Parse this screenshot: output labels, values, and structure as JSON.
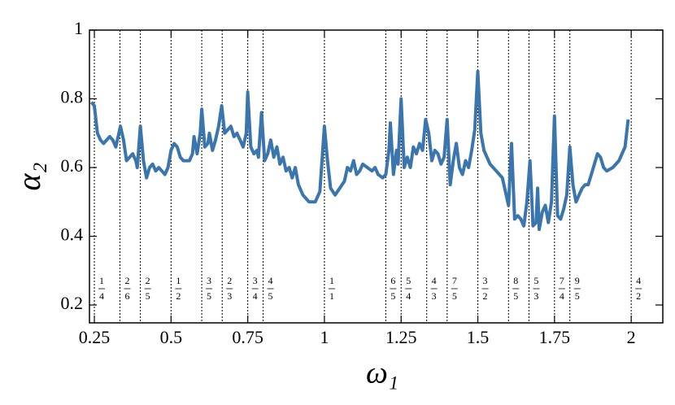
{
  "chart_data": {
    "type": "line",
    "x_label": "ω₁",
    "y_label": "α₂",
    "color": "#3a76ad",
    "xlim": [
      0.234,
      2.103
    ],
    "ylim": [
      0.148,
      1
    ],
    "xticks": [
      0.25,
      0.5,
      0.75,
      1,
      1.25,
      1.5,
      1.75,
      2
    ],
    "yticks": [
      0.2,
      0.4,
      0.6,
      0.8,
      1
    ],
    "resonances": [
      {
        "value": 0.25,
        "numerator": 1,
        "denominator": 4
      },
      {
        "value": 0.3333,
        "numerator": 2,
        "denominator": 6
      },
      {
        "value": 0.4,
        "numerator": 2,
        "denominator": 5
      },
      {
        "value": 0.5,
        "numerator": 1,
        "denominator": 2
      },
      {
        "value": 0.6,
        "numerator": 3,
        "denominator": 5
      },
      {
        "value": 0.6667,
        "numerator": 2,
        "denominator": 3
      },
      {
        "value": 0.75,
        "numerator": 3,
        "denominator": 4
      },
      {
        "value": 0.8,
        "numerator": 4,
        "denominator": 5
      },
      {
        "value": 1,
        "numerator": 1,
        "denominator": 1
      },
      {
        "value": 1.2,
        "numerator": 6,
        "denominator": 5
      },
      {
        "value": 1.25,
        "numerator": 5,
        "denominator": 4
      },
      {
        "value": 1.3333,
        "numerator": 4,
        "denominator": 3
      },
      {
        "value": 1.4,
        "numerator": 7,
        "denominator": 5
      },
      {
        "value": 1.5,
        "numerator": 3,
        "denominator": 2
      },
      {
        "value": 1.6,
        "numerator": 8,
        "denominator": 5
      },
      {
        "value": 1.6667,
        "numerator": 5,
        "denominator": 3
      },
      {
        "value": 1.75,
        "numerator": 7,
        "denominator": 4
      },
      {
        "value": 1.8,
        "numerator": 9,
        "denominator": 5
      },
      {
        "value": 2,
        "numerator": 4,
        "denominator": 2
      }
    ],
    "x": [
      0.24,
      0.25,
      0.26,
      0.27,
      0.28,
      0.29,
      0.3,
      0.31,
      0.32,
      0.33,
      0.335,
      0.345,
      0.355,
      0.365,
      0.375,
      0.385,
      0.39,
      0.4,
      0.41,
      0.42,
      0.43,
      0.44,
      0.45,
      0.46,
      0.47,
      0.48,
      0.49,
      0.5,
      0.51,
      0.52,
      0.53,
      0.54,
      0.55,
      0.56,
      0.57,
      0.575,
      0.585,
      0.595,
      0.6,
      0.61,
      0.62,
      0.625,
      0.635,
      0.645,
      0.655,
      0.665,
      0.675,
      0.685,
      0.695,
      0.705,
      0.715,
      0.725,
      0.735,
      0.745,
      0.75,
      0.76,
      0.77,
      0.78,
      0.785,
      0.795,
      0.805,
      0.815,
      0.825,
      0.835,
      0.845,
      0.855,
      0.865,
      0.875,
      0.885,
      0.895,
      0.905,
      0.915,
      0.93,
      0.95,
      0.97,
      0.985,
      1.0,
      1.01,
      1.02,
      1.035,
      1.05,
      1.065,
      1.075,
      1.085,
      1.095,
      1.105,
      1.115,
      1.125,
      1.14,
      1.155,
      1.165,
      1.175,
      1.19,
      1.2,
      1.21,
      1.215,
      1.225,
      1.235,
      1.24,
      1.25,
      1.26,
      1.27,
      1.28,
      1.29,
      1.3,
      1.31,
      1.32,
      1.33,
      1.34,
      1.35,
      1.36,
      1.37,
      1.38,
      1.39,
      1.4,
      1.41,
      1.42,
      1.43,
      1.44,
      1.45,
      1.46,
      1.47,
      1.48,
      1.49,
      1.5,
      1.51,
      1.52,
      1.54,
      1.56,
      1.58,
      1.59,
      1.6,
      1.61,
      1.62,
      1.63,
      1.64,
      1.65,
      1.66,
      1.67,
      1.68,
      1.69,
      1.695,
      1.7,
      1.71,
      1.72,
      1.73,
      1.74,
      1.75,
      1.76,
      1.77,
      1.78,
      1.79,
      1.8,
      1.81,
      1.82,
      1.83,
      1.84,
      1.85,
      1.86,
      1.87,
      1.89,
      1.9,
      1.91,
      1.92,
      1.94,
      1.96,
      1.98,
      1.99
    ],
    "values": [
      0.79,
      0.78,
      0.7,
      0.68,
      0.67,
      0.68,
      0.69,
      0.68,
      0.66,
      0.7,
      0.72,
      0.68,
      0.62,
      0.63,
      0.64,
      0.62,
      0.6,
      0.72,
      0.62,
      0.57,
      0.6,
      0.61,
      0.59,
      0.6,
      0.59,
      0.58,
      0.6,
      0.65,
      0.67,
      0.66,
      0.63,
      0.62,
      0.62,
      0.62,
      0.64,
      0.69,
      0.64,
      0.7,
      0.77,
      0.66,
      0.67,
      0.7,
      0.65,
      0.68,
      0.72,
      0.78,
      0.7,
      0.71,
      0.72,
      0.69,
      0.7,
      0.68,
      0.66,
      0.7,
      0.82,
      0.66,
      0.64,
      0.65,
      0.63,
      0.76,
      0.62,
      0.64,
      0.68,
      0.63,
      0.66,
      0.61,
      0.63,
      0.59,
      0.6,
      0.57,
      0.6,
      0.55,
      0.52,
      0.5,
      0.5,
      0.53,
      0.72,
      0.62,
      0.54,
      0.52,
      0.54,
      0.56,
      0.6,
      0.59,
      0.62,
      0.58,
      0.59,
      0.61,
      0.6,
      0.59,
      0.6,
      0.58,
      0.57,
      0.58,
      0.65,
      0.73,
      0.58,
      0.65,
      0.61,
      0.8,
      0.6,
      0.63,
      0.6,
      0.66,
      0.64,
      0.67,
      0.65,
      0.74,
      0.7,
      0.62,
      0.65,
      0.64,
      0.61,
      0.63,
      0.74,
      0.55,
      0.62,
      0.67,
      0.6,
      0.58,
      0.62,
      0.6,
      0.65,
      0.71,
      0.88,
      0.7,
      0.65,
      0.61,
      0.59,
      0.57,
      0.53,
      0.49,
      0.67,
      0.45,
      0.46,
      0.45,
      0.43,
      0.5,
      0.62,
      0.43,
      0.44,
      0.54,
      0.42,
      0.47,
      0.49,
      0.44,
      0.5,
      0.75,
      0.46,
      0.45,
      0.48,
      0.52,
      0.66,
      0.55,
      0.5,
      0.52,
      0.54,
      0.55,
      0.55,
      0.58,
      0.64,
      0.63,
      0.6,
      0.59,
      0.6,
      0.62,
      0.66,
      0.74
    ]
  }
}
